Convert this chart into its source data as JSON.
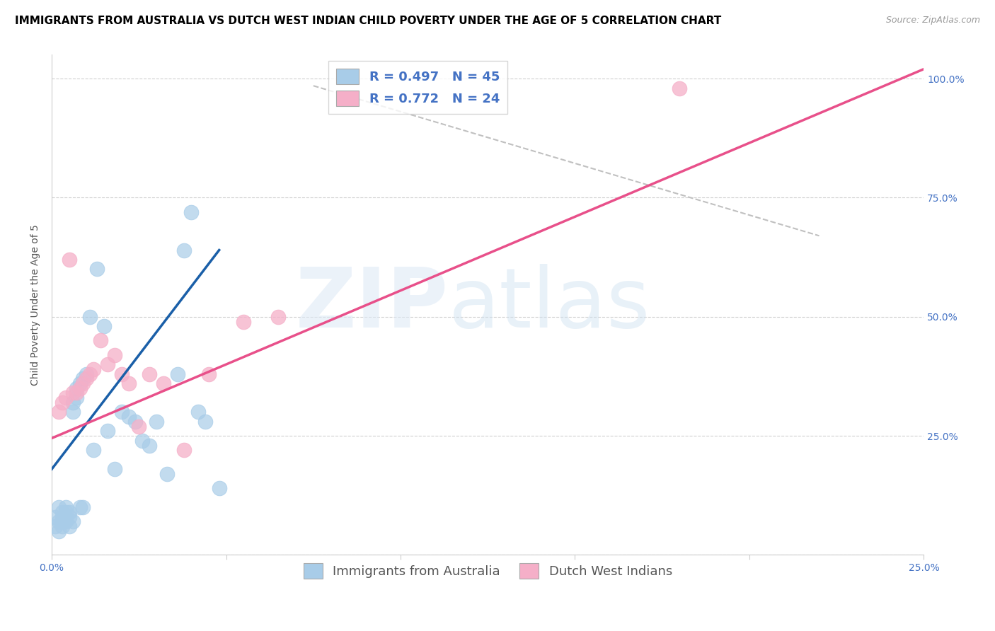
{
  "title": "IMMIGRANTS FROM AUSTRALIA VS DUTCH WEST INDIAN CHILD POVERTY UNDER THE AGE OF 5 CORRELATION CHART",
  "source": "Source: ZipAtlas.com",
  "ylabel": "Child Poverty Under the Age of 5",
  "xlim": [
    0.0,
    0.25
  ],
  "ylim": [
    0.0,
    1.05
  ],
  "ytick_positions": [
    0.0,
    0.25,
    0.5,
    0.75,
    1.0
  ],
  "ytick_labels_right": [
    "",
    "25.0%",
    "50.0%",
    "75.0%",
    "100.0%"
  ],
  "blue_fill": "#a8cce8",
  "pink_fill": "#f5afc8",
  "blue_line_color": "#1a5fa8",
  "pink_line_color": "#e8508a",
  "dashed_line_color": "#c0c0c0",
  "r_blue": 0.497,
  "n_blue": 45,
  "r_pink": 0.772,
  "n_pink": 24,
  "legend_label_blue": "Immigrants from Australia",
  "legend_label_pink": "Dutch West Indians",
  "blue_scatter_x": [
    0.001,
    0.001,
    0.002,
    0.002,
    0.002,
    0.003,
    0.003,
    0.003,
    0.003,
    0.004,
    0.004,
    0.004,
    0.004,
    0.005,
    0.005,
    0.005,
    0.006,
    0.006,
    0.006,
    0.007,
    0.007,
    0.008,
    0.008,
    0.009,
    0.009,
    0.01,
    0.011,
    0.012,
    0.013,
    0.015,
    0.016,
    0.018,
    0.02,
    0.022,
    0.024,
    0.026,
    0.028,
    0.03,
    0.033,
    0.036,
    0.038,
    0.04,
    0.042,
    0.044,
    0.048
  ],
  "blue_scatter_y": [
    0.06,
    0.08,
    0.05,
    0.07,
    0.1,
    0.06,
    0.07,
    0.08,
    0.09,
    0.07,
    0.08,
    0.09,
    0.1,
    0.06,
    0.08,
    0.09,
    0.07,
    0.3,
    0.32,
    0.33,
    0.35,
    0.36,
    0.1,
    0.37,
    0.1,
    0.38,
    0.5,
    0.22,
    0.6,
    0.48,
    0.26,
    0.18,
    0.3,
    0.29,
    0.28,
    0.24,
    0.23,
    0.28,
    0.17,
    0.38,
    0.64,
    0.72,
    0.3,
    0.28,
    0.14
  ],
  "pink_scatter_x": [
    0.002,
    0.003,
    0.004,
    0.005,
    0.006,
    0.007,
    0.008,
    0.009,
    0.01,
    0.011,
    0.012,
    0.014,
    0.016,
    0.018,
    0.02,
    0.022,
    0.025,
    0.028,
    0.032,
    0.038,
    0.045,
    0.055,
    0.065,
    0.18
  ],
  "pink_scatter_y": [
    0.3,
    0.32,
    0.33,
    0.62,
    0.34,
    0.34,
    0.35,
    0.36,
    0.37,
    0.38,
    0.39,
    0.45,
    0.4,
    0.42,
    0.38,
    0.36,
    0.27,
    0.38,
    0.36,
    0.22,
    0.38,
    0.49,
    0.5,
    0.98
  ],
  "blue_line_x": [
    0.0,
    0.048
  ],
  "blue_line_y": [
    0.18,
    0.64
  ],
  "pink_line_x": [
    0.0,
    0.25
  ],
  "pink_line_y": [
    0.245,
    1.02
  ],
  "dash_line_x": [
    0.075,
    0.22
  ],
  "dash_line_y": [
    0.985,
    0.67
  ],
  "title_fontsize": 11,
  "axis_label_fontsize": 10,
  "tick_fontsize": 10,
  "legend_fontsize": 13
}
